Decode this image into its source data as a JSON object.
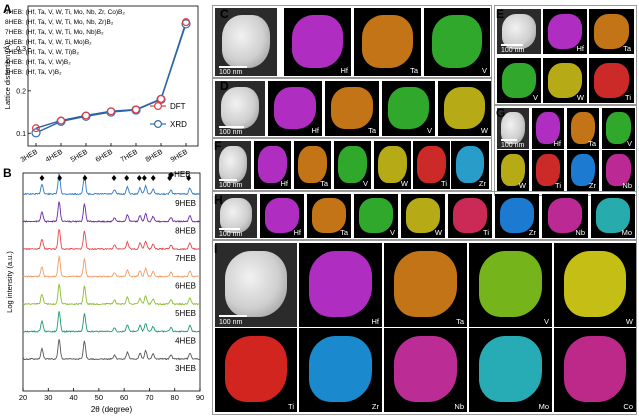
{
  "figure": {
    "panel_letters": [
      "A",
      "B",
      "C",
      "D",
      "E",
      "F",
      "G",
      "H",
      "I"
    ]
  },
  "panel_a": {
    "legend_compositions": [
      "9HEB: (Hf, Ta, V, W, Ti, Mo, Nb, Zr, Co)B₂",
      "8HEB: (Hf, Ta, V, W, Ti, Mo, Nb, Zr)B₂",
      "7HEB: (Hf, Ta, V, W, Ti, Mo, Nb)B₂",
      "6HEB: (Hf, Ta, V, W, Ti, Mo)B₂",
      "5HEB: (Hf, Ta, V, W, Ti)B₂",
      "4HEB: (Hf, Ta, V, W)B₂",
      "3HEB: (Hf, Ta, V)B₂"
    ],
    "colors": {
      "dft": "#e8383b",
      "xrd": "#2f6fb0",
      "line": "#2c63a8"
    }
  },
  "panel_b": {
    "legend_label": "◆HEB",
    "curves": [
      {
        "name": "9HEB",
        "color": "#2f79c7"
      },
      {
        "name": "8HEB",
        "color": "#6a2aa0"
      },
      {
        "name": "7HEB",
        "color": "#e8484b"
      },
      {
        "name": "6HEB",
        "color": "#f39a63"
      },
      {
        "name": "5HEB",
        "color": "#8bbd2f"
      },
      {
        "name": "4HEB",
        "color": "#1f9a72"
      },
      {
        "name": "3HEB",
        "color": "#575757"
      }
    ],
    "peak_positions_deg": [
      27.5,
      34.5,
      44.5,
      56,
      61,
      66,
      68,
      71.5,
      78,
      85.5
    ]
  },
  "chart_data": [
    {
      "type": "line",
      "title": "",
      "xlabel": "",
      "ylabel": "Lattice distortion (Å)",
      "categories": [
        "3HEB",
        "4HEB",
        "5HEB",
        "6HEB",
        "7HEB",
        "8HEB",
        "9HEB"
      ],
      "series": [
        {
          "name": "DFT",
          "values": [
            0.112,
            0.13,
            0.142,
            0.152,
            0.156,
            0.181,
            0.362
          ]
        },
        {
          "name": "XRD",
          "values": [
            0.101,
            0.128,
            0.14,
            0.15,
            0.155,
            0.18,
            0.358
          ]
        }
      ],
      "ylim": [
        0.07,
        0.4
      ],
      "yticks": [
        "0.1",
        "0.2",
        "0.3"
      ],
      "ytick_values": [
        0.1,
        0.2,
        0.3
      ],
      "legend": "lower-right",
      "grid": false
    },
    {
      "type": "line",
      "title": "",
      "xlabel": "2θ (degree)",
      "ylabel": "Log intensity (a.u.)",
      "x_range": [
        20,
        90
      ],
      "xticks": [
        "20",
        "30",
        "40",
        "50",
        "60",
        "70",
        "80",
        "90"
      ],
      "xtick_values": [
        20,
        30,
        40,
        50,
        60,
        70,
        80,
        90
      ],
      "series": [
        {
          "name": "3HEB",
          "peaks": [
            27.5,
            34.3,
            44.3,
            56.2,
            61.3,
            66.3,
            68.5,
            71.4,
            78.5,
            86
          ]
        },
        {
          "name": "4HEB",
          "peaks": [
            27.5,
            34.3,
            44.3,
            56.2,
            61.3,
            66.3,
            68.5,
            71.4,
            78.5,
            86
          ]
        },
        {
          "name": "5HEB",
          "peaks": [
            27.5,
            34.3,
            44.3,
            56.2,
            61.3,
            66.3,
            68.5,
            71.4,
            78.5,
            86
          ]
        },
        {
          "name": "6HEB",
          "peaks": [
            27.5,
            34.3,
            44.3,
            56.2,
            61.3,
            66.3,
            68.5,
            71.4,
            78.5,
            86
          ]
        },
        {
          "name": "7HEB",
          "peaks": [
            27.5,
            34.3,
            44.3,
            56.2,
            61.3,
            66.3,
            68.5,
            71.4,
            78.5,
            86
          ]
        },
        {
          "name": "8HEB",
          "peaks": [
            27.5,
            34.3,
            44.3,
            56.2,
            61.3,
            66.3,
            68.5,
            71.4,
            78.5,
            86
          ]
        },
        {
          "name": "9HEB",
          "peaks": [
            27.5,
            34.3,
            44.3,
            56.2,
            61.3,
            66.3,
            68.5,
            71.4,
            78.5,
            86
          ]
        }
      ],
      "legend": "top-right"
    }
  ],
  "eds_panels": [
    {
      "id": "C",
      "tiles": [
        {
          "label": "100 nm",
          "kind": "haadf"
        },
        {
          "label": "Hf",
          "color": "#c43ad6"
        },
        {
          "label": "Ta",
          "color": "#dd8a26"
        },
        {
          "label": "V",
          "color": "#42c23e"
        }
      ]
    },
    {
      "id": "D",
      "tiles": [
        {
          "label": "100 nm",
          "kind": "haadf"
        },
        {
          "label": "Hf",
          "color": "#c43ad6"
        },
        {
          "label": "Ta",
          "color": "#dd8a26"
        },
        {
          "label": "V",
          "color": "#42c23e"
        },
        {
          "label": "W",
          "color": "#d4c82a"
        }
      ]
    },
    {
      "id": "E",
      "tiles": [
        {
          "label": "100 nm",
          "kind": "haadf"
        },
        {
          "label": "Hf",
          "color": "#c43ad6"
        },
        {
          "label": "Ta",
          "color": "#dd8a26"
        },
        {
          "label": "V",
          "color": "#42c23e"
        },
        {
          "label": "W",
          "color": "#d4c82a"
        },
        {
          "label": "Ti",
          "color": "#e23535"
        }
      ]
    },
    {
      "id": "F",
      "tiles": [
        {
          "label": "100 nm",
          "kind": "haadf"
        },
        {
          "label": "Hf",
          "color": "#c43ad6"
        },
        {
          "label": "Ta",
          "color": "#dd8a26"
        },
        {
          "label": "V",
          "color": "#42c23e"
        },
        {
          "label": "W",
          "color": "#d4c82a"
        },
        {
          "label": "Ti",
          "color": "#e23535"
        },
        {
          "label": "Zr",
          "color": "#39b7e6"
        }
      ]
    },
    {
      "id": "G",
      "tiles": [
        {
          "label": "100 nm",
          "kind": "haadf"
        },
        {
          "label": "Hf",
          "color": "#c43ad6"
        },
        {
          "label": "Ta",
          "color": "#dd8a26"
        },
        {
          "label": "V",
          "color": "#42c23e"
        },
        {
          "label": "W",
          "color": "#d4c82a"
        },
        {
          "label": "Ti",
          "color": "#e23535"
        },
        {
          "label": "Zr",
          "color": "#2a8fea"
        },
        {
          "label": "Nb",
          "color": "#d135a8"
        }
      ]
    },
    {
      "id": "H",
      "tiles": [
        {
          "label": "100 nm",
          "kind": "haadf"
        },
        {
          "label": "Hf",
          "color": "#c43ad6"
        },
        {
          "label": "Ta",
          "color": "#dd8a26"
        },
        {
          "label": "V",
          "color": "#42c23e"
        },
        {
          "label": "W",
          "color": "#d4c82a"
        },
        {
          "label": "Ti",
          "color": "#e23565"
        },
        {
          "label": "Zr",
          "color": "#2a8fea"
        },
        {
          "label": "Nb",
          "color": "#d135a8"
        },
        {
          "label": "Mo",
          "color": "#39c6c8"
        }
      ]
    },
    {
      "id": "I",
      "tiles": [
        {
          "label": "100 nm",
          "kind": "haadf"
        },
        {
          "label": "Hf",
          "color": "#c43ad6"
        },
        {
          "label": "Ta",
          "color": "#dd8a26"
        },
        {
          "label": "V",
          "color": "#8fd12e"
        },
        {
          "label": "W",
          "color": "#e6e02a"
        },
        {
          "label": "Ti",
          "color": "#e8302a"
        },
        {
          "label": "Zr",
          "color": "#2aa0ea"
        },
        {
          "label": "Nb",
          "color": "#d13aa8"
        },
        {
          "label": "Mo",
          "color": "#39c6d0"
        },
        {
          "label": "Co",
          "color": "#d1359a"
        }
      ]
    }
  ]
}
